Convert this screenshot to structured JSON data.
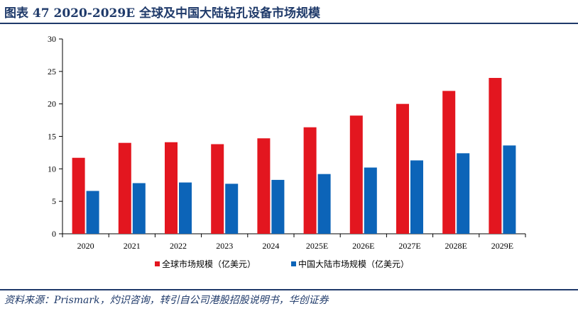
{
  "header": {
    "title": "图表 47   2020-2029E 全球及中国大陆钻孔设备市场规模"
  },
  "source": "资料来源：Prismark，灼识咨询，转引自公司港股招股说明书，华创证券",
  "chart_data": {
    "type": "bar",
    "title": "",
    "xlabel": "",
    "ylabel": "",
    "ylim": [
      0,
      30
    ],
    "yticks": [
      0,
      5,
      10,
      15,
      20,
      25,
      30
    ],
    "grid": false,
    "legend_position": "bottom",
    "categories": [
      "2020",
      "2021",
      "2022",
      "2023",
      "2024",
      "2025E",
      "2026E",
      "2027E",
      "2028E",
      "2029E"
    ],
    "series": [
      {
        "name": "全球市场规模（亿美元）",
        "color": "#e3161f",
        "values": [
          11.7,
          14.0,
          14.1,
          13.8,
          14.7,
          16.4,
          18.2,
          20.0,
          22.0,
          24.0
        ]
      },
      {
        "name": "中国大陆市场规模（亿美元）",
        "color": "#0c64b8",
        "values": [
          6.6,
          7.8,
          7.9,
          7.7,
          8.3,
          9.2,
          10.2,
          11.3,
          12.4,
          13.6
        ]
      }
    ]
  }
}
